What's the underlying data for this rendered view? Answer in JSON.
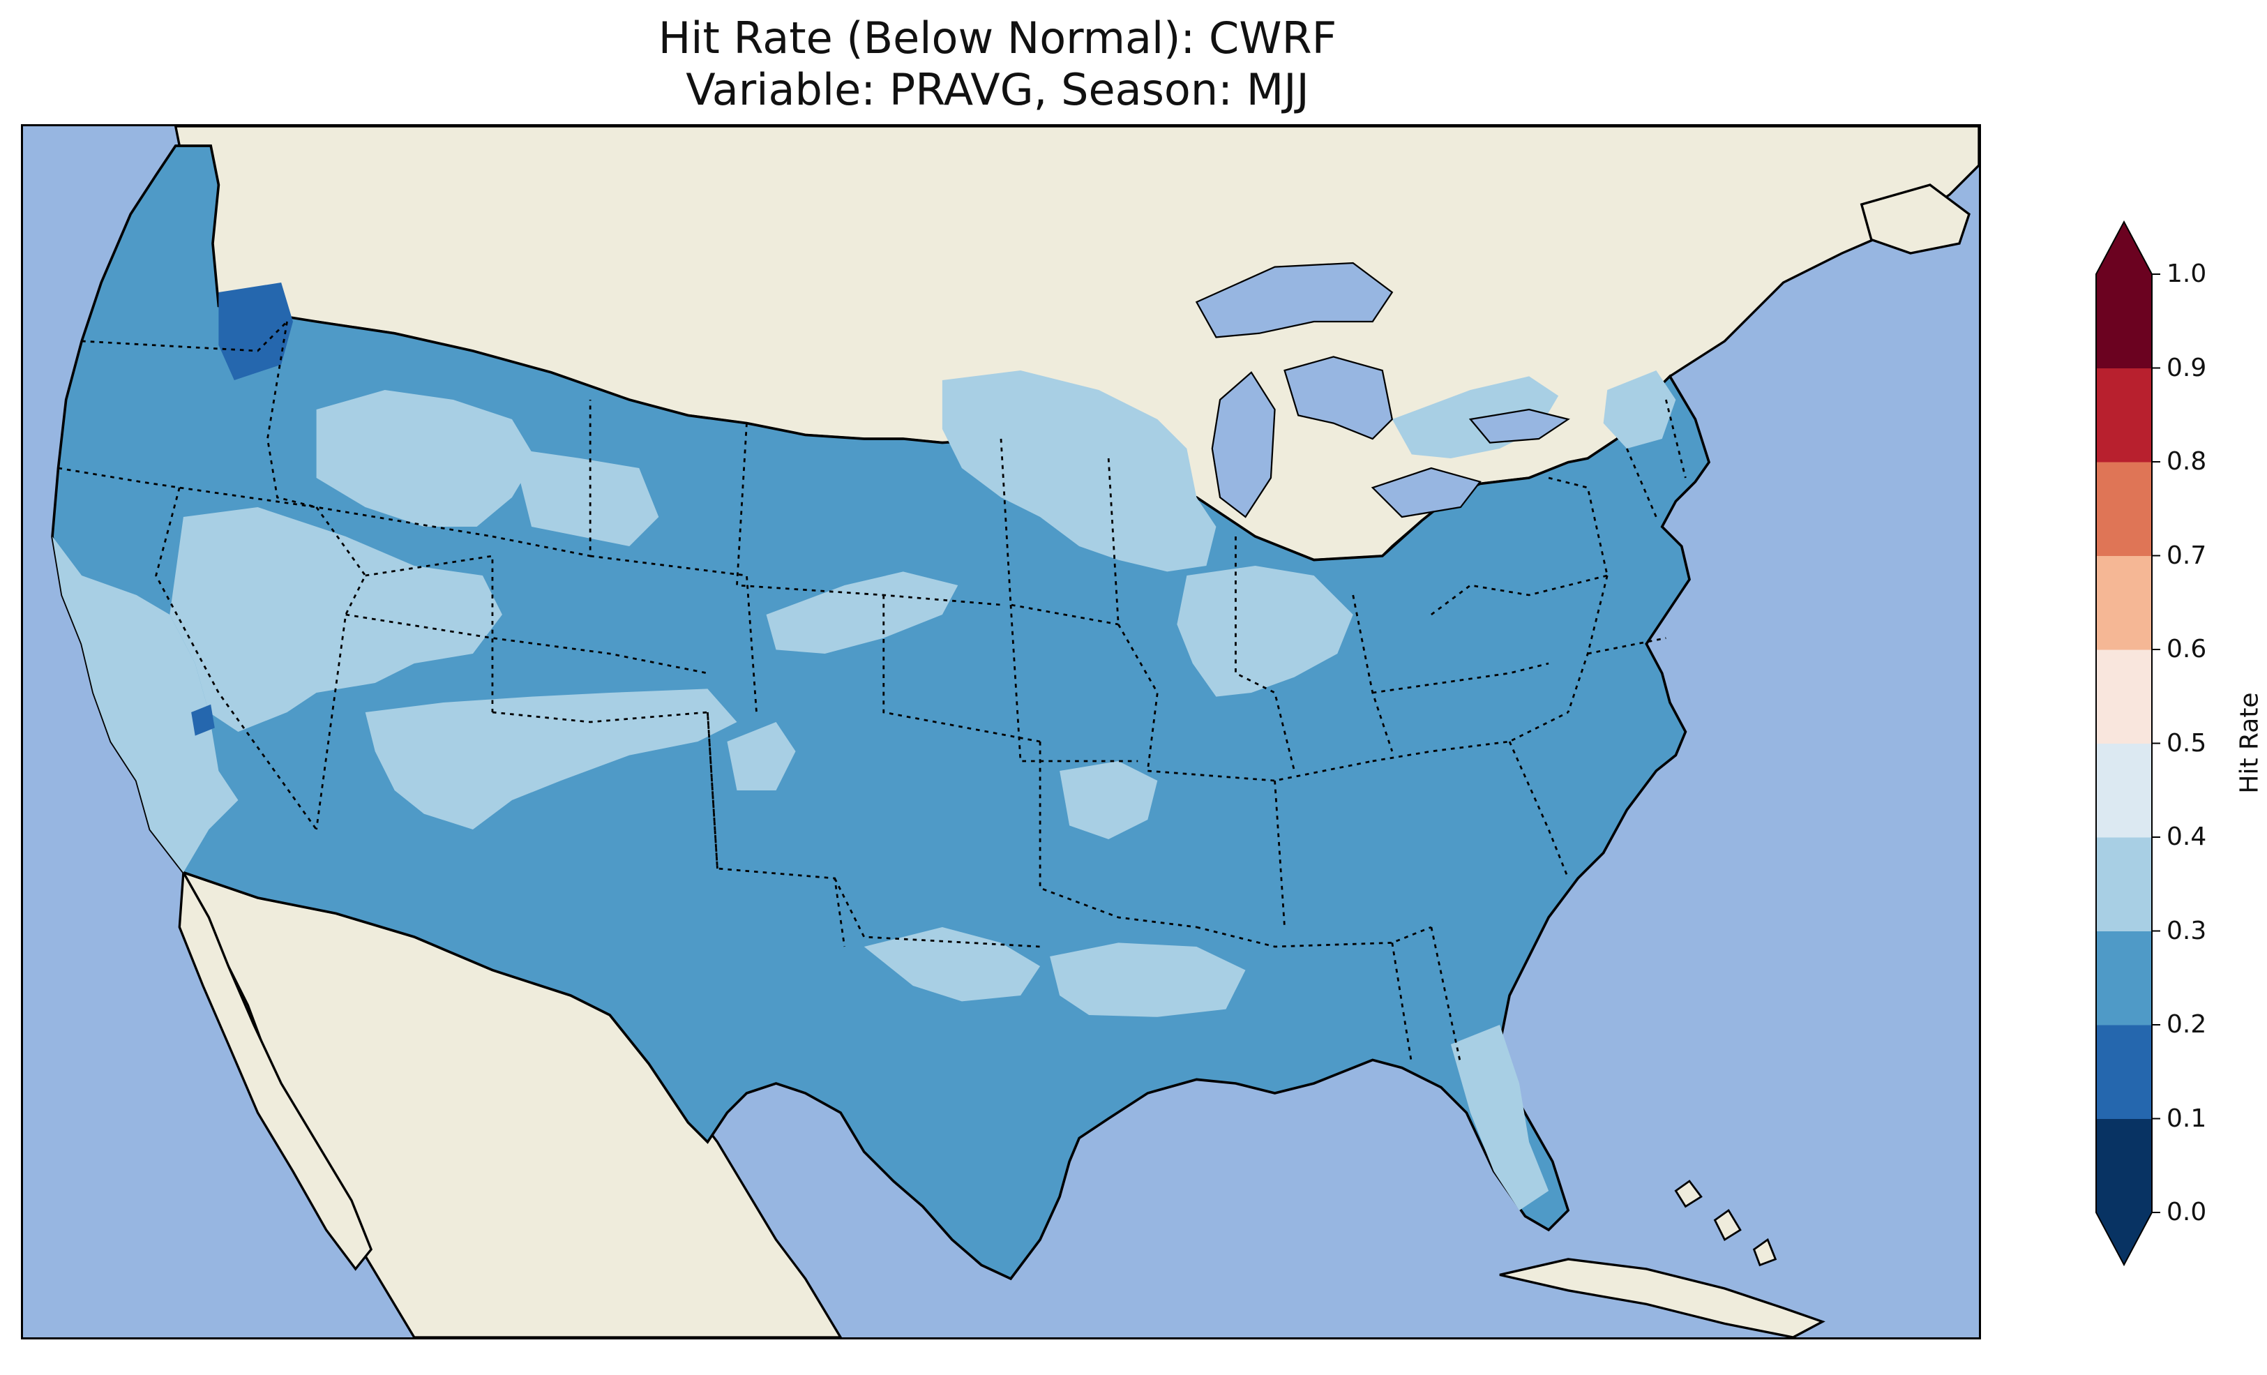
{
  "figure": {
    "title_line1": "Hit Rate (Below Normal): CWRF",
    "title_line2": "Variable: PRAVG, Season: MJJ"
  },
  "map": {
    "region": "Contiguous United States",
    "ocean_color": "#97b6e1",
    "land_color": "#efecdc",
    "state_borders": "dotted",
    "coastlines": "solid",
    "dominant_bins": [
      "0.2-0.3",
      "0.3-0.4"
    ],
    "high_hit_rate_note": "No grid cells above 0.5"
  },
  "colorbar": {
    "label": "Hit Rate",
    "extend": "both",
    "ticks": [
      "0.0",
      "0.1",
      "0.2",
      "0.3",
      "0.4",
      "0.5",
      "0.6",
      "0.7",
      "0.8",
      "0.9",
      "1.0"
    ],
    "colors": [
      "#053061",
      "#2166ac",
      "#4393c3",
      "#92c5de",
      "#d1e5f0",
      "#f7f7f7",
      "#fddbc7",
      "#f4a582",
      "#d6604d",
      "#b2182b",
      "#67001f"
    ],
    "bin_colors": [
      "#083363",
      "#2567ae",
      "#4f9ac7",
      "#a8cfe4",
      "#dce9f2",
      "#f9e6dd",
      "#f5b795",
      "#df7556",
      "#b8202e",
      "#6b0220"
    ]
  }
}
